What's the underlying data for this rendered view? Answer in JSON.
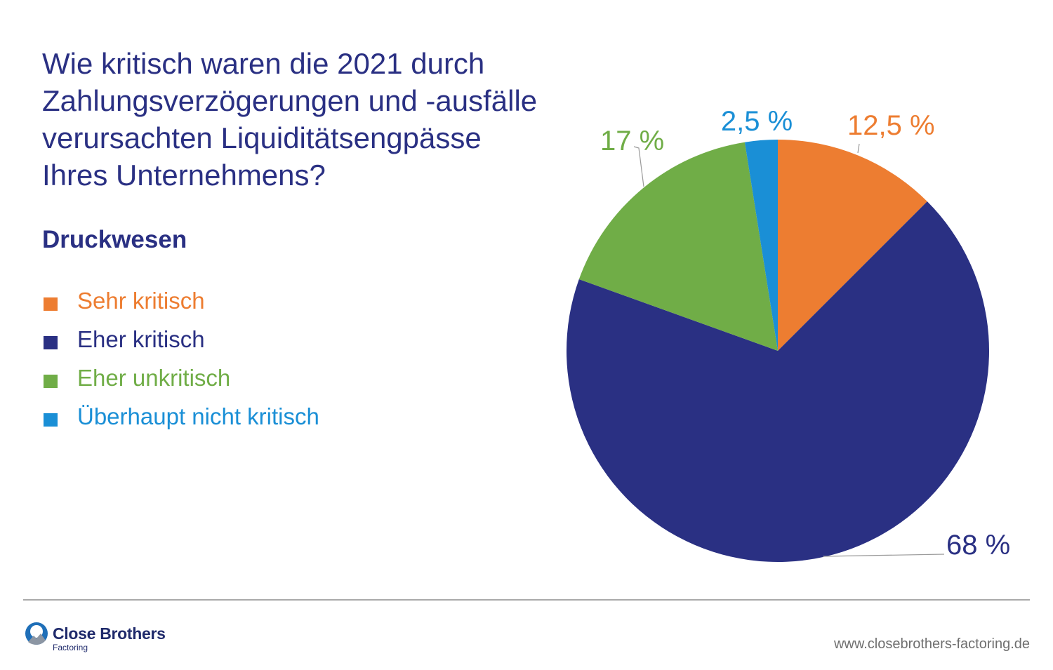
{
  "title_lines": [
    "Wie kritisch waren die 2021 durch",
    "Zahlungsverzögerungen und -ausfälle",
    "verursachten Liquiditätsengpässe",
    "Ihres Unternehmens?"
  ],
  "subtitle": "Druckwesen",
  "chart_data": {
    "type": "pie",
    "title": "Wie kritisch waren die 2021 durch Zahlungsverzögerungen und -ausfälle verursachten Liquiditätsengpässe Ihres Unternehmens?",
    "subtitle": "Druckwesen",
    "legend_position": "left",
    "categories": [
      "Sehr kritisch",
      "Eher kritisch",
      "Eher unkritisch",
      "Überhaupt nicht kritisch"
    ],
    "values": [
      12.5,
      68,
      17,
      2.5
    ],
    "value_labels": [
      "12,5 %",
      "68 %",
      "17 %",
      "2,5 %"
    ],
    "colors": [
      "#ed7d31",
      "#2a3083",
      "#70ad47",
      "#1a8fd6"
    ],
    "start_angle_deg": 0,
    "direction": "clockwise"
  },
  "footer": {
    "logo_name": "Close Brothers",
    "logo_sub": "Factoring",
    "logo_icon": "close-brothers-logo-icon",
    "url": "www.closebrothers-factoring.de"
  }
}
